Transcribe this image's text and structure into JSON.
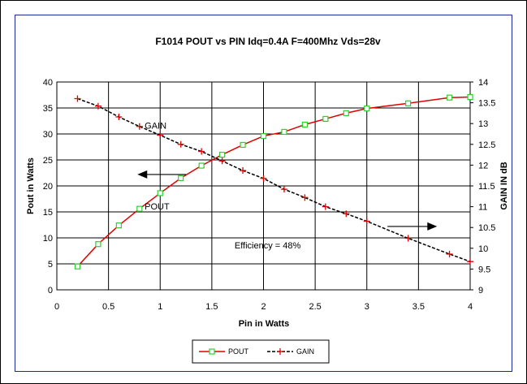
{
  "chart_data": {
    "type": "line",
    "title": "F1014 POUT vs PIN   Idq=0.4A   F=400Mhz Vds=28v",
    "xlabel": "Pin in Watts",
    "ylabel": "Pout in  Watts",
    "y2label": "GAIN IN dB",
    "xlim": [
      0,
      4
    ],
    "ylim": [
      0,
      40
    ],
    "y2lim": [
      9,
      14
    ],
    "x_ticks": [
      "0",
      "0.5",
      "1",
      "1.5",
      "2",
      "2.5",
      "3",
      "3.5",
      "4"
    ],
    "y_ticks": [
      "0",
      "5",
      "10",
      "15",
      "20",
      "25",
      "30",
      "35",
      "40"
    ],
    "y2_ticks": [
      "9",
      "9.5",
      "10",
      "10.5",
      "11",
      "11.5",
      "12",
      "12.5",
      "13",
      "13.5",
      "14"
    ],
    "grid": true,
    "legend": "bottom",
    "series": [
      {
        "name": "POUT",
        "axis": "left",
        "color": "#e00000",
        "marker": "square",
        "marker_color": "#33cc33",
        "x": [
          0.2,
          0.4,
          0.6,
          0.8,
          1.0,
          1.2,
          1.4,
          1.6,
          1.8,
          2.0,
          2.2,
          2.4,
          2.6,
          2.8,
          3.0,
          3.4,
          3.8,
          4.0
        ],
        "y": [
          4.5,
          8.8,
          12.4,
          15.6,
          18.6,
          21.5,
          23.9,
          26.0,
          27.9,
          29.6,
          30.4,
          31.8,
          32.9,
          34.0,
          34.9,
          35.9,
          37.0,
          37.1
        ]
      },
      {
        "name": "GAIN",
        "axis": "right",
        "color": "#000000",
        "marker": "plus",
        "marker_color": "#e00000",
        "x": [
          0.2,
          0.4,
          0.6,
          0.8,
          1.0,
          1.2,
          1.4,
          1.6,
          1.8,
          2.0,
          2.2,
          2.4,
          2.6,
          2.8,
          3.0,
          3.4,
          3.8,
          4.0
        ],
        "y": [
          13.6,
          13.42,
          13.16,
          12.93,
          12.72,
          12.5,
          12.33,
          12.1,
          11.87,
          11.68,
          11.42,
          11.22,
          11.0,
          10.83,
          10.65,
          10.24,
          9.86,
          9.68
        ]
      }
    ],
    "annotations": [
      {
        "text": "GAIN",
        "x": 0.85,
        "y": 31.0
      },
      {
        "text": "POUT",
        "x": 0.85,
        "y": 15.5
      },
      {
        "text": "Efficiency = 48%",
        "x": 1.72,
        "y": 8.0
      }
    ],
    "arrows": [
      {
        "direction": "left",
        "x_from": 1.25,
        "x_to": 0.78,
        "y": 22.2
      },
      {
        "direction": "right",
        "x_from": 3.2,
        "x_to": 3.68,
        "y": 12.2
      }
    ]
  }
}
